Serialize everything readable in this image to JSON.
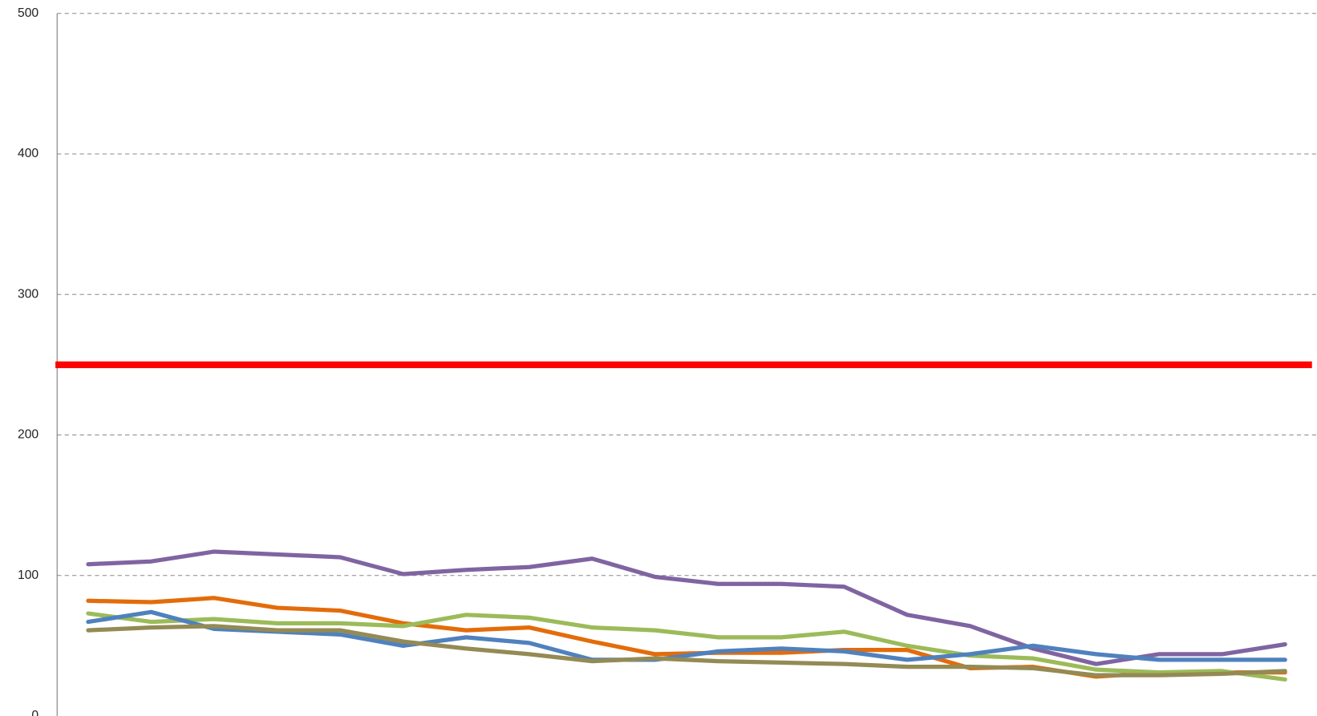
{
  "chart_data": {
    "type": "line",
    "categories": [
      null,
      null,
      null,
      null,
      null,
      null,
      null,
      null,
      null,
      null,
      null,
      null,
      null,
      null,
      null,
      null,
      null,
      null,
      null,
      null
    ],
    "ylim": [
      0,
      500
    ],
    "yticks": [
      0,
      100,
      200,
      300,
      400,
      500
    ],
    "grid": true,
    "threshold": 250,
    "threshold_color": "#ff0000",
    "series": [
      {
        "color": "#8064a2",
        "values": [
          108,
          110,
          117,
          115,
          113,
          101,
          104,
          106,
          112,
          99,
          94,
          94,
          92,
          72,
          64,
          48,
          37,
          44,
          44,
          51
        ]
      },
      {
        "color": "#e36c0a",
        "values": [
          82,
          81,
          84,
          77,
          75,
          66,
          61,
          63,
          53,
          44,
          45,
          45,
          47,
          47,
          34,
          35,
          28,
          31,
          31,
          31
        ]
      },
      {
        "color": "#9bbb59",
        "values": [
          73,
          67,
          69,
          66,
          66,
          64,
          72,
          70,
          63,
          61,
          56,
          56,
          60,
          50,
          43,
          41,
          33,
          31,
          32,
          26
        ]
      },
      {
        "color": "#4f81bd",
        "values": [
          67,
          74,
          62,
          60,
          58,
          50,
          56,
          52,
          40,
          40,
          46,
          48,
          46,
          40,
          44,
          50,
          44,
          40,
          40,
          40
        ]
      },
      {
        "color": "#948a54",
        "values": [
          61,
          63,
          64,
          61,
          61,
          53,
          48,
          44,
          39,
          41,
          39,
          38,
          37,
          35,
          35,
          34,
          29,
          29,
          30,
          32
        ]
      }
    ]
  }
}
